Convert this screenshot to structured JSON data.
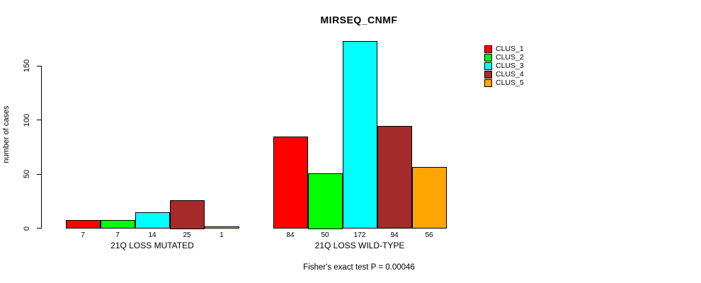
{
  "title": "MIRSEQ_CNMF",
  "caption": "Fisher's exact test P = 0.00046",
  "y_axis": {
    "label": "number of cases",
    "ticks": [
      0,
      50,
      100,
      150
    ]
  },
  "legend": {
    "items": [
      {
        "label": "CLUS_1",
        "color": "#FF0000"
      },
      {
        "label": "CLUS_2",
        "color": "#00FF00"
      },
      {
        "label": "CLUS_3",
        "color": "#00FFFF"
      },
      {
        "label": "CLUS_4",
        "color": "#A52A2A"
      },
      {
        "label": "CLUS_5",
        "color": "#FFA500"
      }
    ]
  },
  "chart_data": {
    "type": "bar",
    "title": "MIRSEQ_CNMF",
    "xlabel": "",
    "ylabel": "number of cases",
    "ylim": [
      0,
      175
    ],
    "yticks": [
      0,
      50,
      100,
      150
    ],
    "grid": false,
    "legend_position": "top-right",
    "series": [
      {
        "name": "CLUS_1",
        "color": "#FF0000"
      },
      {
        "name": "CLUS_2",
        "color": "#00FF00"
      },
      {
        "name": "CLUS_3",
        "color": "#00FFFF"
      },
      {
        "name": "CLUS_4",
        "color": "#A52A2A"
      },
      {
        "name": "CLUS_5",
        "color": "#FFA500"
      }
    ],
    "groups": [
      {
        "label": "21Q LOSS MUTATED",
        "values": [
          7,
          7,
          14,
          25,
          1
        ]
      },
      {
        "label": "21Q LOSS WILD-TYPE",
        "values": [
          84,
          50,
          172,
          94,
          56
        ]
      }
    ],
    "annotation": "Fisher's exact test P = 0.00046"
  }
}
